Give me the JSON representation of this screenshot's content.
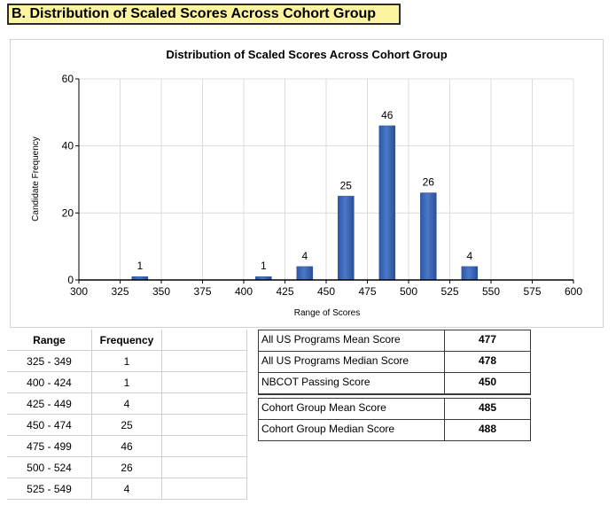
{
  "section_title": "B. Distribution of Scaled Scores Across Cohort Group",
  "chart_data": {
    "type": "bar",
    "title": "Distribution of Scaled Scores Across Cohort Group",
    "xlabel": "Range of Scores",
    "ylabel": "Candidate Frequency",
    "xlim": [
      300,
      600
    ],
    "ylim": [
      0,
      60
    ],
    "xticks": [
      300,
      325,
      350,
      375,
      400,
      425,
      450,
      475,
      500,
      525,
      550,
      575,
      600
    ],
    "yticks": [
      0,
      20,
      40,
      60
    ],
    "grid": true,
    "bar_color": "#4a78c8",
    "points": [
      {
        "x": 337,
        "y": 1
      },
      {
        "x": 412,
        "y": 1
      },
      {
        "x": 437,
        "y": 4
      },
      {
        "x": 462,
        "y": 25
      },
      {
        "x": 487,
        "y": 46
      },
      {
        "x": 512,
        "y": 26
      },
      {
        "x": 537,
        "y": 4
      }
    ]
  },
  "frequency_table": {
    "headers": [
      "Range",
      "Frequency"
    ],
    "rows": [
      {
        "range": "325 - 349",
        "frequency": "1"
      },
      {
        "range": "400 - 424",
        "frequency": "1"
      },
      {
        "range": "425 - 449",
        "frequency": "4"
      },
      {
        "range": "450 - 474",
        "frequency": "25"
      },
      {
        "range": "475 - 499",
        "frequency": "46"
      },
      {
        "range": "500 - 524",
        "frequency": "26"
      },
      {
        "range": "525 - 549",
        "frequency": "4"
      }
    ]
  },
  "stats": {
    "national": [
      {
        "label": "All US Programs Mean Score",
        "value": "477"
      },
      {
        "label": "All US Programs Median Score",
        "value": "478"
      },
      {
        "label": "NBCOT Passing Score",
        "value": "450"
      }
    ],
    "cohort": [
      {
        "label": "Cohort Group Mean Score",
        "value": "485"
      },
      {
        "label": "Cohort Group Median Score",
        "value": "488"
      }
    ]
  }
}
